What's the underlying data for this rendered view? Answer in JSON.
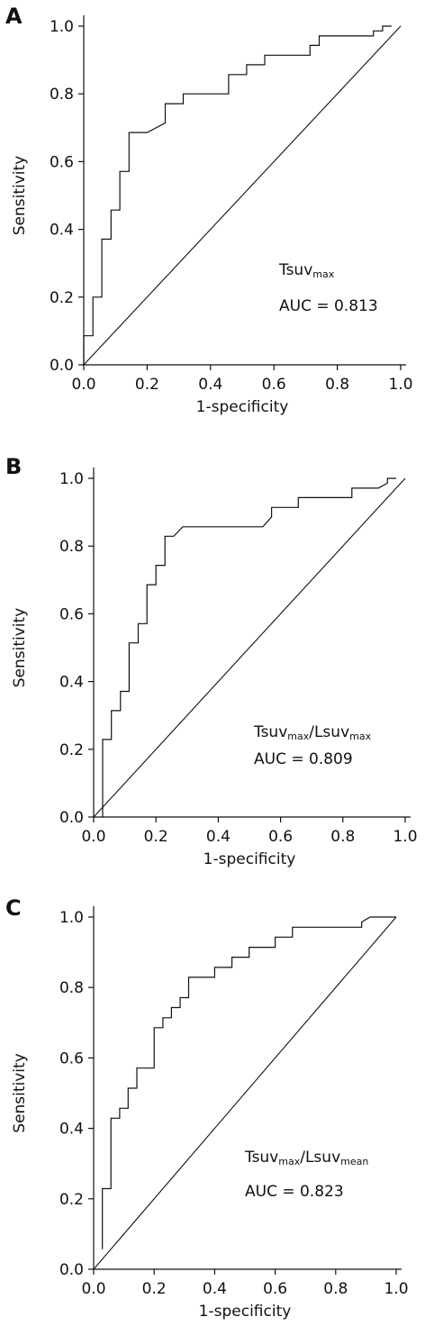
{
  "chart_data": [
    {
      "type": "line",
      "panel_label": "A",
      "xlabel": "1-specificity",
      "ylabel": "Sensitivity",
      "xlim": [
        0,
        1
      ],
      "ylim": [
        0,
        1
      ],
      "x_ticks": [
        "0.0",
        "0.2",
        "0.4",
        "0.6",
        "0.8",
        "1.0"
      ],
      "y_ticks": [
        "0.0",
        "0.2",
        "0.4",
        "0.6",
        "0.8",
        "1.0"
      ],
      "grid": false,
      "reference_line": "diagonal",
      "annotation": {
        "main": "Tsuv",
        "sub": "max",
        "suffix": "",
        "auc": "AUC = 0.813"
      },
      "series": [
        {
          "x": [
            0.0,
            0.0,
            0.029,
            0.029,
            0.057,
            0.057,
            0.086,
            0.086,
            0.114,
            0.114,
            0.143,
            0.143,
            0.171,
            0.171,
            0.2,
            0.257,
            0.257,
            0.314,
            0.314,
            0.457,
            0.457,
            0.514,
            0.514,
            0.571,
            0.571,
            0.714,
            0.714,
            0.743,
            0.743,
            0.914,
            0.914,
            0.943,
            0.943,
            0.971
          ],
          "y": [
            0.0,
            0.086,
            0.086,
            0.2,
            0.2,
            0.371,
            0.371,
            0.457,
            0.457,
            0.571,
            0.571,
            0.686,
            0.686,
            0.686,
            0.686,
            0.714,
            0.771,
            0.771,
            0.8,
            0.8,
            0.857,
            0.857,
            0.886,
            0.886,
            0.914,
            0.914,
            0.943,
            0.943,
            0.971,
            0.971,
            0.986,
            0.986,
            1.0,
            1.0
          ]
        }
      ]
    },
    {
      "type": "line",
      "panel_label": "B",
      "xlabel": "1-specificity",
      "ylabel": "Sensitivity",
      "xlim": [
        0,
        1
      ],
      "ylim": [
        0,
        1
      ],
      "x_ticks": [
        "0.0",
        "0.2",
        "0.4",
        "0.6",
        "0.8",
        "1.0"
      ],
      "y_ticks": [
        "0.0",
        "0.2",
        "0.4",
        "0.6",
        "0.8",
        "1.0"
      ],
      "grid": false,
      "reference_line": "diagonal",
      "annotation": {
        "main": "Tsuv",
        "sub": "max",
        "suffix": "/Lsuv",
        "suffix_sub": "max",
        "auc": "AUC = 0.809"
      },
      "series": [
        {
          "x": [
            0.029,
            0.029,
            0.057,
            0.057,
            0.086,
            0.086,
            0.114,
            0.114,
            0.143,
            0.143,
            0.171,
            0.171,
            0.2,
            0.2,
            0.229,
            0.229,
            0.257,
            0.257,
            0.286,
            0.343,
            0.543,
            0.571,
            0.571,
            0.657,
            0.657,
            0.8,
            0.829,
            0.829,
            0.914,
            0.943,
            0.943,
            0.971
          ],
          "y": [
            0.0,
            0.229,
            0.229,
            0.314,
            0.314,
            0.371,
            0.371,
            0.514,
            0.514,
            0.571,
            0.571,
            0.686,
            0.686,
            0.743,
            0.743,
            0.829,
            0.829,
            0.829,
            0.857,
            0.857,
            0.857,
            0.886,
            0.914,
            0.914,
            0.943,
            0.943,
            0.943,
            0.971,
            0.971,
            0.986,
            1.0,
            1.0
          ]
        }
      ]
    },
    {
      "type": "line",
      "panel_label": "C",
      "xlabel": "1-specificity",
      "ylabel": "Sensitivity",
      "xlim": [
        0,
        1
      ],
      "ylim": [
        0,
        1
      ],
      "x_ticks": [
        "0.0",
        "0.2",
        "0.4",
        "0.6",
        "0.8",
        "1.0"
      ],
      "y_ticks": [
        "0.0",
        "0.2",
        "0.4",
        "0.6",
        "0.8",
        "1.0"
      ],
      "grid": false,
      "reference_line": "diagonal",
      "annotation": {
        "main": "Tsuv",
        "sub": "max",
        "suffix": "/Lsuv",
        "suffix_sub": "mean",
        "auc": "AUC = 0.823"
      },
      "series": [
        {
          "x": [
            0.029,
            0.029,
            0.057,
            0.057,
            0.086,
            0.086,
            0.114,
            0.114,
            0.143,
            0.143,
            0.171,
            0.171,
            0.2,
            0.2,
            0.229,
            0.229,
            0.257,
            0.257,
            0.286,
            0.286,
            0.314,
            0.314,
            0.371,
            0.4,
            0.4,
            0.429,
            0.457,
            0.457,
            0.486,
            0.514,
            0.514,
            0.571,
            0.6,
            0.6,
            0.657,
            0.657,
            0.886,
            0.886,
            0.914,
            0.943,
            0.971,
            1.0
          ],
          "y": [
            0.057,
            0.229,
            0.229,
            0.429,
            0.429,
            0.457,
            0.457,
            0.514,
            0.514,
            0.571,
            0.571,
            0.571,
            0.571,
            0.686,
            0.686,
            0.714,
            0.714,
            0.743,
            0.743,
            0.771,
            0.771,
            0.829,
            0.829,
            0.829,
            0.857,
            0.857,
            0.857,
            0.886,
            0.886,
            0.886,
            0.914,
            0.914,
            0.914,
            0.943,
            0.943,
            0.971,
            0.971,
            0.986,
            1.0,
            1.0,
            1.0,
            1.0
          ]
        }
      ]
    }
  ]
}
